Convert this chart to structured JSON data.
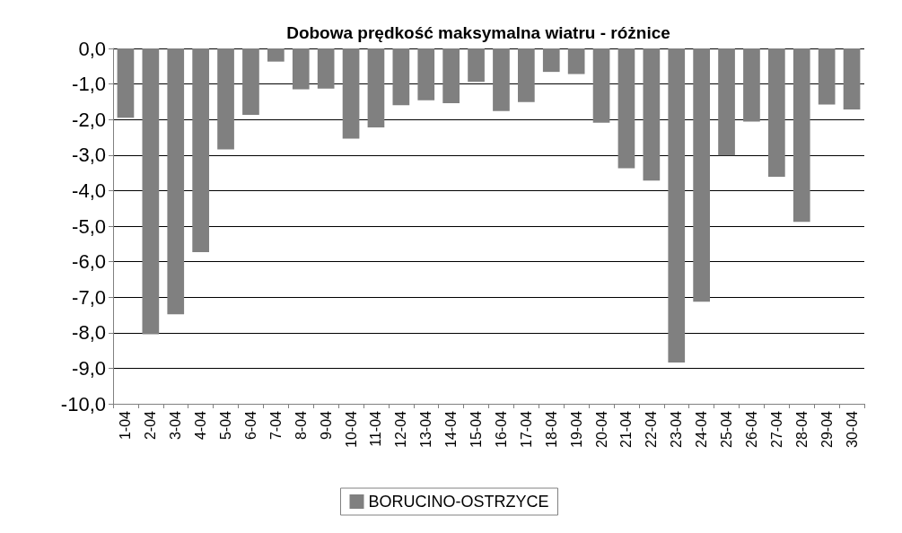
{
  "chart_data": {
    "type": "bar",
    "title": "Dobowa prędkość maksymalna wiatru - różnice",
    "categories": [
      "1-04",
      "2-04",
      "3-04",
      "4-04",
      "5-04",
      "6-04",
      "7-04",
      "8-04",
      "9-04",
      "10-04",
      "11-04",
      "12-04",
      "13-04",
      "14-04",
      "15-04",
      "16-04",
      "17-04",
      "18-04",
      "19-04",
      "20-04",
      "21-04",
      "22-04",
      "23-04",
      "24-04",
      "25-04",
      "26-04",
      "27-04",
      "28-04",
      "29-04",
      "30-04"
    ],
    "series": [
      {
        "name": "BORUCINO-OSTRZYCE",
        "color": "#808080",
        "values": [
          -1.95,
          -8.04,
          -7.48,
          -5.73,
          -2.84,
          -1.87,
          -0.37,
          -1.15,
          -1.13,
          -2.54,
          -2.22,
          -1.6,
          -1.46,
          -1.54,
          -0.94,
          -1.76,
          -1.51,
          -0.66,
          -0.72,
          -2.09,
          -3.37,
          -3.72,
          -8.84,
          -7.13,
          -3.01,
          -2.06,
          -3.61,
          -4.88,
          -1.58,
          -1.72
        ]
      }
    ],
    "ylim": [
      -10,
      0
    ],
    "yticks": [
      {
        "value": -10,
        "label": "-10,0"
      },
      {
        "value": -9,
        "label": "-9,0"
      },
      {
        "value": -8,
        "label": "-8,0"
      },
      {
        "value": -7,
        "label": "-7,0"
      },
      {
        "value": -6,
        "label": "-6,0"
      },
      {
        "value": -5,
        "label": "-5,0"
      },
      {
        "value": -4,
        "label": "-4,0"
      },
      {
        "value": -3,
        "label": "-3,0"
      },
      {
        "value": -2,
        "label": "-2,0"
      },
      {
        "value": -1,
        "label": "-1,0"
      },
      {
        "value": 0,
        "label": "0,0"
      }
    ],
    "grid": "y",
    "legend": "bottom"
  }
}
